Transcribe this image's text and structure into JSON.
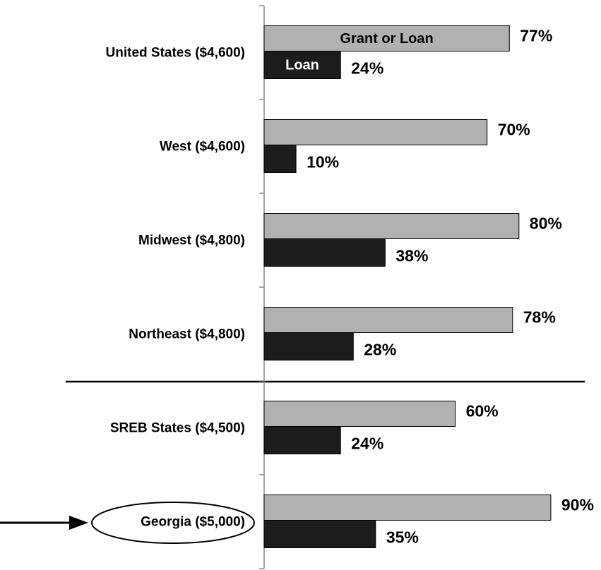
{
  "chart_data": {
    "type": "hbar",
    "categories": [
      "United States ($4,600)",
      "West ($4,600)",
      "Midwest ($4,800)",
      "Northeast ($4,800)",
      "SREB States ($4,500)",
      "Georgia ($5,000)"
    ],
    "series": [
      {
        "name": "Grant or Loan",
        "color": "#b1b1b1",
        "values": [
          77,
          70,
          80,
          78,
          60,
          90
        ],
        "value_labels": [
          "77%",
          "70%",
          "80%",
          "78%",
          "60%",
          "90%"
        ]
      },
      {
        "name": "Loan",
        "color": "#1c1c1c",
        "values": [
          24,
          10,
          38,
          28,
          24,
          35
        ],
        "value_labels": [
          "24%",
          "10%",
          "38%",
          "28%",
          "24%",
          "35%"
        ]
      }
    ],
    "xlim": [
      0,
      100
    ]
  }
}
